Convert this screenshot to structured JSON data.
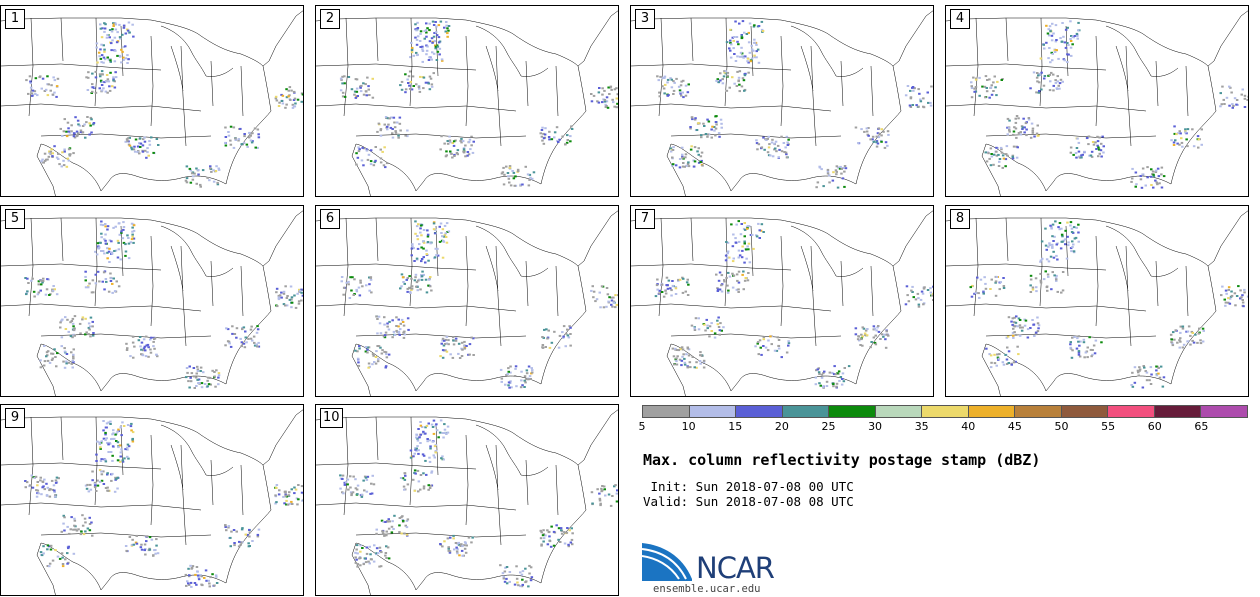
{
  "panels": [
    {
      "label": "1"
    },
    {
      "label": "2"
    },
    {
      "label": "3"
    },
    {
      "label": "4"
    },
    {
      "label": "5"
    },
    {
      "label": "6"
    },
    {
      "label": "7"
    },
    {
      "label": "8"
    },
    {
      "label": "9"
    },
    {
      "label": "10"
    }
  ],
  "colorbar": {
    "colors": [
      "#a0a0a0",
      "#b3bde8",
      "#5a5fd6",
      "#4a9498",
      "#0c8a0c",
      "#b9d8bb",
      "#ecd96b",
      "#edb02a",
      "#b8803a",
      "#8f5a3c",
      "#f24f7e",
      "#661c3a",
      "#ad4cad"
    ],
    "tick_labels": [
      "5",
      "10",
      "15",
      "20",
      "25",
      "30",
      "35",
      "40",
      "45",
      "50",
      "55",
      "60",
      "65"
    ]
  },
  "title": "Max. column reflectivity postage stamp (dBZ)",
  "init_text": " Init: Sun 2018-07-08 00 UTC",
  "valid_text": "Valid: Sun 2018-07-08 08 UTC",
  "logo": {
    "name": "NCAR",
    "url": "ensemble.ucar.edu"
  }
}
